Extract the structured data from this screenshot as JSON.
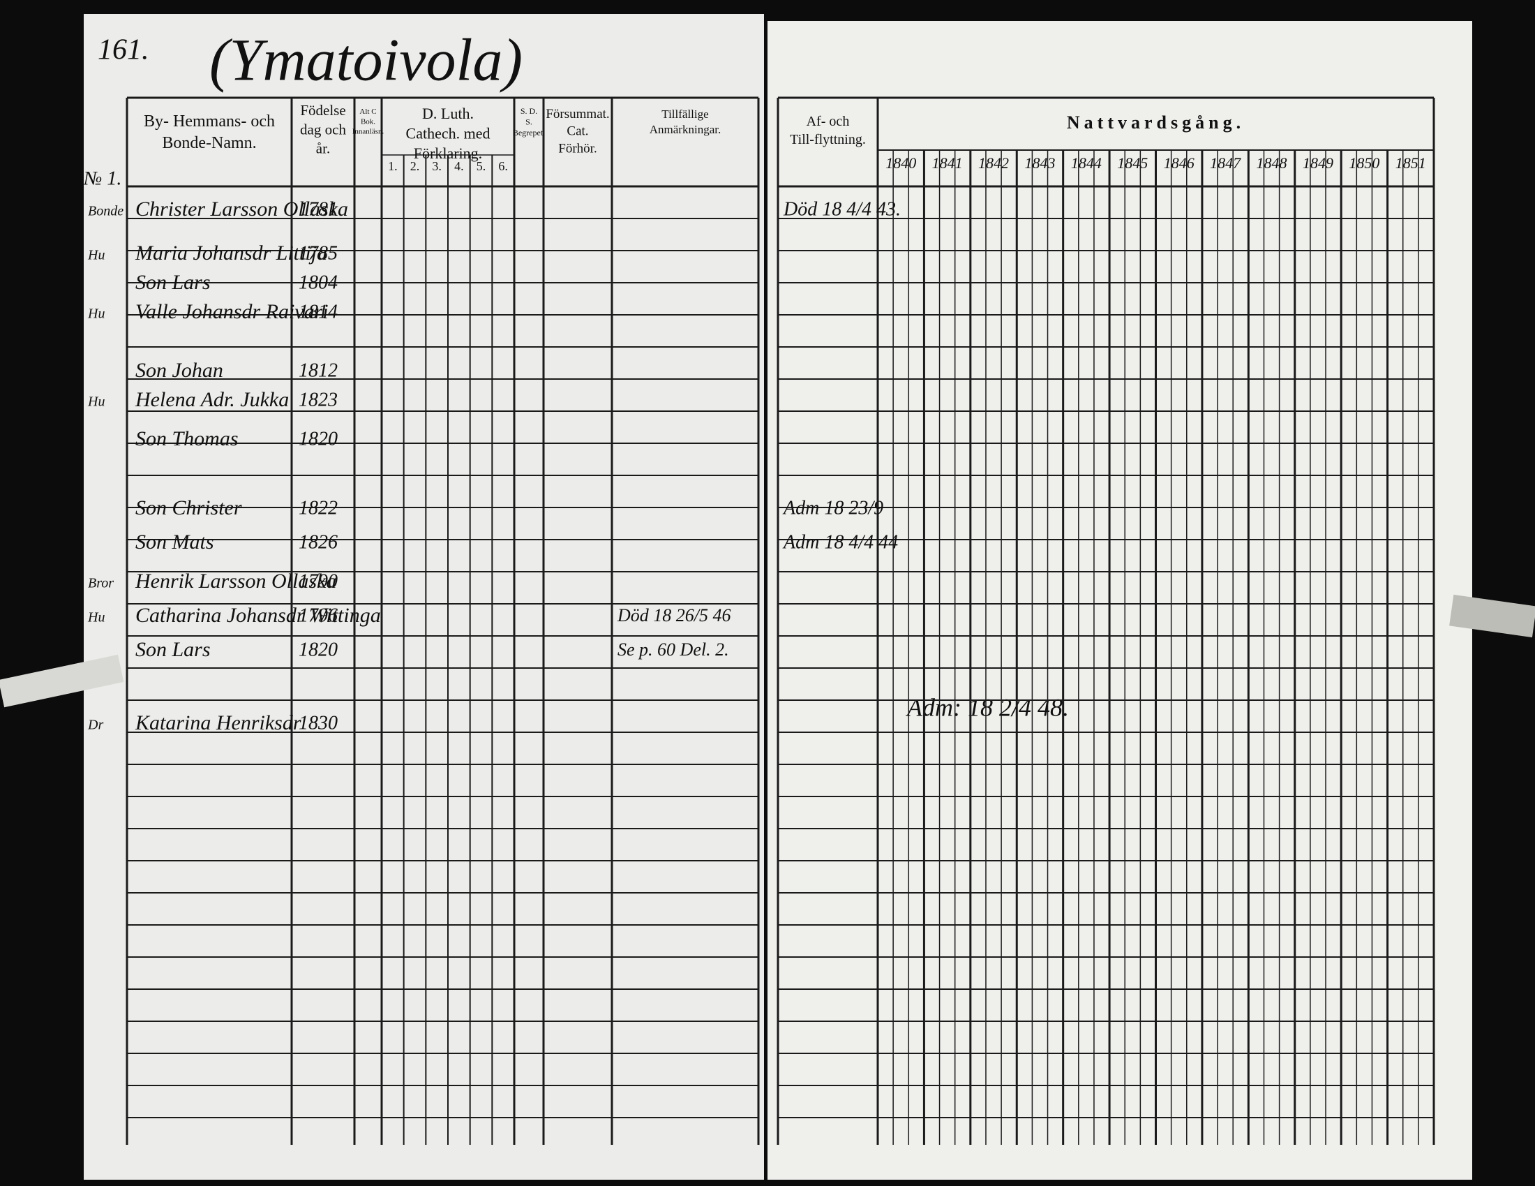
{
  "header": {
    "page_number": "161.",
    "village": "(Ymatoivola)"
  },
  "left_columns": {
    "names": "By- Hemmans- och Bonde-Namn.",
    "birth": "Födelse dag och år.",
    "reading": "Alt C Bok. Innanläsn.",
    "catechism": "D. Luth. Cathech. med Förklaring.",
    "catechism_parts": [
      "1.",
      "2.",
      "3.",
      "4.",
      "5.",
      "6."
    ],
    "sds": "S. D. S. Begrepet.",
    "missed": "Försummat. Cat. Förhör.",
    "remarks": "Tillfällige Anmärkningar."
  },
  "right_columns": {
    "moves": "Af- och Till-flyttning.",
    "communion": "Nattvardsgång.",
    "years": [
      "1840",
      "1841",
      "1842",
      "1843",
      "1844",
      "1845",
      "1846",
      "1847",
      "1848",
      "1849",
      "1850",
      "1851"
    ]
  },
  "household_number": "№ 1.",
  "rows": [
    {
      "role": "Bonde",
      "name": "Christer Larsson Ollaska",
      "born": "1781",
      "move": "Död 18 4/4 43."
    },
    {
      "role": "Hu",
      "name": "Maria Johansdr Littija",
      "born": "1785"
    },
    {
      "role": "",
      "name": "Son Lars",
      "born": "1804"
    },
    {
      "role": "Hu",
      "name": "Valle Johansdr Raivari",
      "born": "1814"
    },
    {
      "role": "",
      "name": "Son Johan",
      "born": "1812"
    },
    {
      "role": "Hu",
      "name": "Helena Adr. Jukka",
      "born": "1823"
    },
    {
      "role": "",
      "name": "Son Thomas",
      "born": "1820"
    },
    {
      "role": "",
      "name": "Son Christer",
      "born": "1822",
      "move": "Adm 18 23/9"
    },
    {
      "role": "",
      "name": "Son Mats",
      "born": "1826",
      "move": "Adm 18 4/4 44"
    },
    {
      "role": "Bror",
      "name": "Henrik Larsson Ollaska",
      "born": "1790"
    },
    {
      "role": "Hu",
      "name": "Catharina Johansdr Wittinga",
      "born": "1796",
      "remark": "Död 18 26/5 46"
    },
    {
      "role": "",
      "name": "Son Lars",
      "born": "1820",
      "remark": "Se p. 60 Del. 2."
    },
    {
      "role": "Dr",
      "name": "Katarina Henriksdr",
      "born": "1830"
    }
  ],
  "late_note": "Adm: 18 2/4 48."
}
